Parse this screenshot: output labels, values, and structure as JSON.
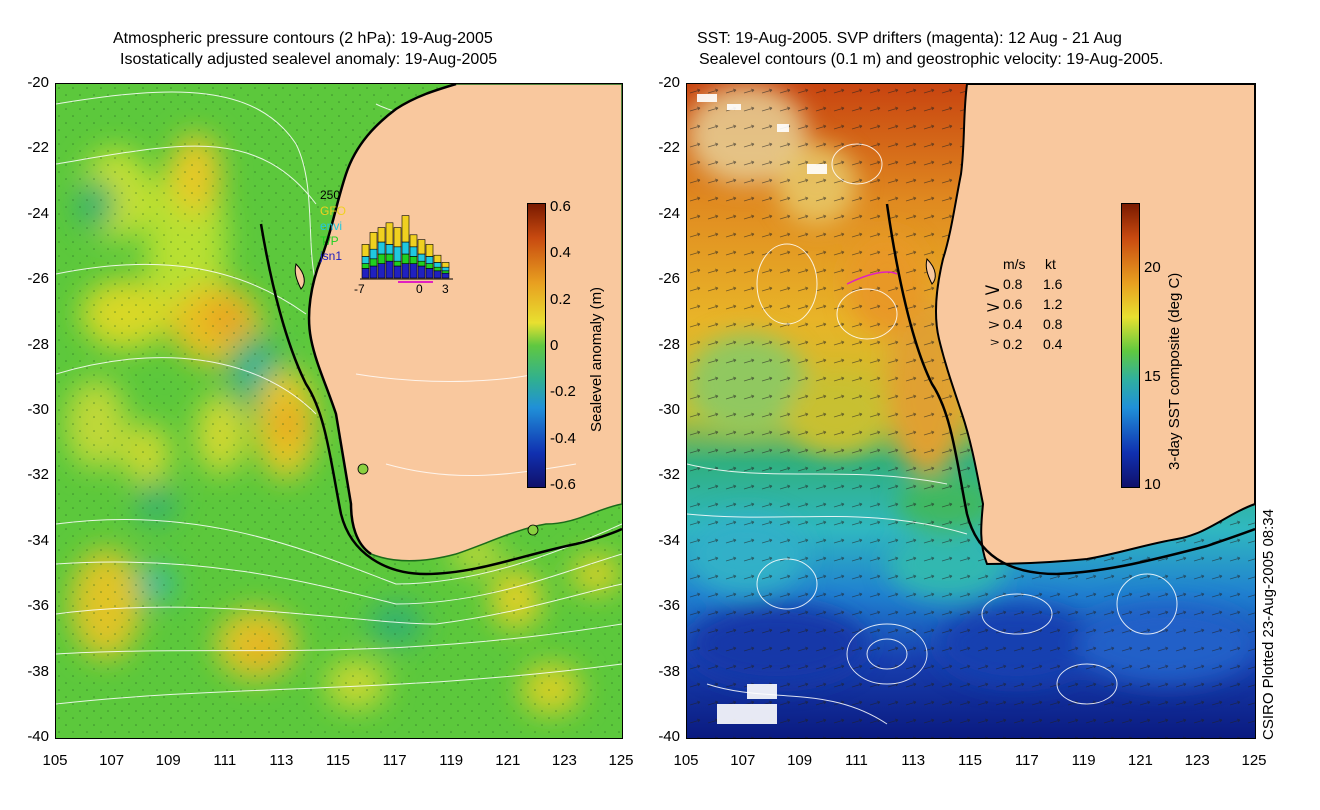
{
  "left_panel": {
    "title_line1": "Atmospheric pressure contours (2 hPa): 19-Aug-2005",
    "title_line2": "Isostatically adjusted sealevel anomaly: 19-Aug-2005",
    "colorbar_title": "Sealevel anomaly (m)",
    "colorbar_ticks": [
      "0.6",
      "0.4",
      "0.2",
      "0",
      "-0.2",
      "-0.4",
      "-0.6"
    ],
    "inset": {
      "ymax_label": "250",
      "missions": [
        "GFO",
        "envi",
        "T/P",
        "jsn1"
      ],
      "mission_colors": [
        "#f0d020",
        "#20c8e0",
        "#20d020",
        "#2020c0"
      ],
      "x_ticks": [
        "-7",
        "0",
        "3"
      ]
    }
  },
  "right_panel": {
    "title_line1": "SST: 19-Aug-2005. SVP drifters (magenta): 12 Aug - 21 Aug",
    "title_line2": "Sealevel contours (0.1 m) and geostrophic velocity: 19-Aug-2005.",
    "colorbar_title": "3-day SST composite (deg C)",
    "colorbar_ticks": [
      "20",
      "15",
      "10"
    ],
    "velocity_legend": {
      "header_ms": "m/s",
      "header_kt": "kt",
      "rows": [
        {
          "ms": "0.8",
          "kt": "1.6"
        },
        {
          "ms": "0.6",
          "kt": "1.2"
        },
        {
          "ms": "0.4",
          "kt": "0.8"
        },
        {
          "ms": "0.2",
          "kt": "0.4"
        }
      ]
    }
  },
  "axes": {
    "lat_ticks": [
      "-20",
      "-22",
      "-24",
      "-26",
      "-28",
      "-30",
      "-32",
      "-34",
      "-36",
      "-38",
      "-40"
    ],
    "lon_ticks": [
      "105",
      "107",
      "109",
      "111",
      "113",
      "115",
      "117",
      "119",
      "121",
      "123",
      "125"
    ]
  },
  "footer": {
    "plotted_label": "CSIRO Plotted 23-Aug-2005 08:34"
  },
  "colors": {
    "land": "#f9c89e",
    "coast": "#000000",
    "sla_mid": "#5cc83c",
    "sst_warm": "#d05010",
    "sst_cold": "#102a9c"
  }
}
